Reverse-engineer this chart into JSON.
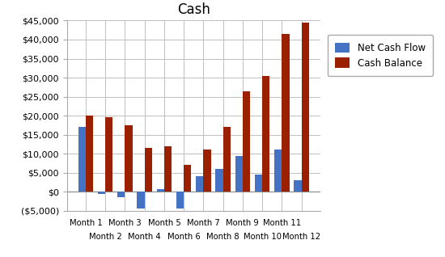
{
  "title": "Cash",
  "categories": [
    "Month 1",
    "Month 2",
    "Month 3",
    "Month 4",
    "Month 5",
    "Month 6",
    "Month 7",
    "Month 8",
    "Month 9",
    "Month 10",
    "Month 11",
    "Month 12"
  ],
  "net_cash_flow": [
    17000,
    -500,
    -1500,
    -4500,
    700,
    -4500,
    4000,
    6000,
    9500,
    4500,
    11000,
    3000
  ],
  "cash_balance": [
    20000,
    19500,
    17500,
    11500,
    12000,
    7000,
    11000,
    17000,
    26500,
    30500,
    41500,
    44500
  ],
  "bar_color_blue": "#4472C4",
  "bar_color_red": "#9B2000",
  "legend_labels": [
    "Net Cash Flow",
    "Cash Balance"
  ],
  "ylim_min": -5000,
  "ylim_max": 45000,
  "ytick_step": 5000,
  "background_color": "#ffffff",
  "grid_color": "#c0c0c0",
  "figsize": [
    5.5,
    3.18
  ],
  "dpi": 100
}
